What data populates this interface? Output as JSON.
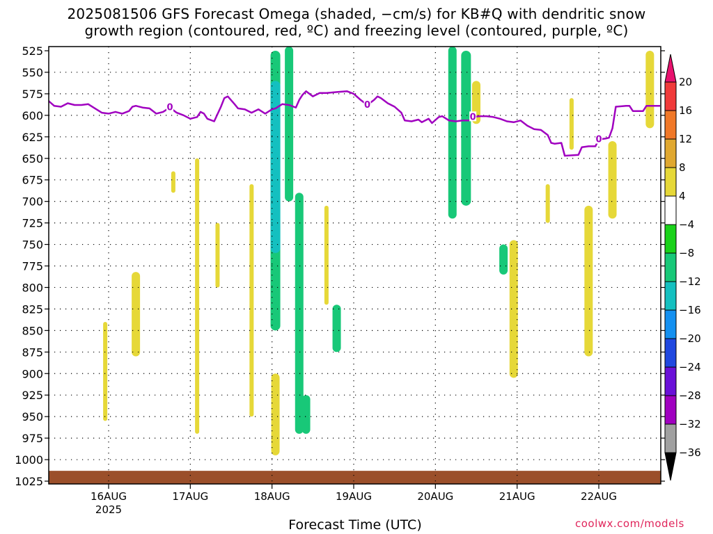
{
  "title_line1": "2025081506 GFS Forecast Omega (shaded, −cm/s) for KB#Q with dendritic snow",
  "title_line2": "growth region (contoured, red, ºC) and freezing level (contoured, purple, ºC)",
  "xlabel": "Forecast Time (UTC)",
  "credit": "coolwx.com/models",
  "colors": {
    "freezing_level": "#a000c0",
    "ground": "#9b4f2a"
  },
  "chart_data": {
    "type": "heatmap",
    "x_ticks": [
      {
        "label": "16AUG",
        "sub": "2025",
        "hour": 24
      },
      {
        "label": "17AUG",
        "sub": "",
        "hour": 48
      },
      {
        "label": "18AUG",
        "sub": "",
        "hour": 72
      },
      {
        "label": "19AUG",
        "sub": "",
        "hour": 96
      },
      {
        "label": "20AUG",
        "sub": "",
        "hour": 120
      },
      {
        "label": "21AUG",
        "sub": "",
        "hour": 144
      },
      {
        "label": "22AUG",
        "sub": "",
        "hour": 168
      }
    ],
    "xlim_hours": [
      6,
      186
    ],
    "y_ticks": [
      525,
      550,
      575,
      600,
      625,
      650,
      675,
      700,
      725,
      750,
      775,
      800,
      825,
      850,
      875,
      900,
      925,
      950,
      975,
      1000,
      1025
    ],
    "ylim": [
      525,
      1025
    ],
    "grid": true,
    "colorbar": {
      "labels": [
        "20",
        "16",
        "12",
        "8",
        "4",
        "−4",
        "−8",
        "−12",
        "−16",
        "−20",
        "−24",
        "−28",
        "−32",
        "−36"
      ],
      "colors": [
        "#f03a3a",
        "#f07828",
        "#e0a830",
        "#e6d838",
        "#ffffff",
        "#1ad21a",
        "#18c878",
        "#14c0c0",
        "#1490f0",
        "#2048e0",
        "#6a10d8",
        "#a000c0",
        "#a0a0a0"
      ],
      "top_color": "#e8126e",
      "bottom_color": "#000000"
    },
    "freezing_level": {
      "label": "0",
      "points": [
        [
          6,
          582
        ],
        [
          8,
          589
        ],
        [
          10,
          590
        ],
        [
          12,
          586
        ],
        [
          14,
          588
        ],
        [
          16,
          588
        ],
        [
          18,
          587
        ],
        [
          20,
          592
        ],
        [
          22,
          597
        ],
        [
          24,
          598
        ],
        [
          26,
          596
        ],
        [
          28,
          598
        ],
        [
          30,
          595
        ],
        [
          31,
          590
        ],
        [
          32,
          589
        ],
        [
          34,
          591
        ],
        [
          36,
          592
        ],
        [
          38,
          598
        ],
        [
          40,
          596
        ],
        [
          42,
          591
        ],
        [
          44,
          597
        ],
        [
          46,
          600
        ],
        [
          48,
          604
        ],
        [
          50,
          602
        ],
        [
          51,
          596
        ],
        [
          52,
          598
        ],
        [
          53,
          604
        ],
        [
          55,
          607
        ],
        [
          57,
          590
        ],
        [
          58,
          580
        ],
        [
          59,
          578
        ],
        [
          61,
          587
        ],
        [
          62,
          592
        ],
        [
          64,
          593
        ],
        [
          66,
          597
        ],
        [
          68,
          593
        ],
        [
          70,
          598
        ],
        [
          72,
          593
        ],
        [
          73,
          592
        ],
        [
          75,
          587
        ],
        [
          77,
          588
        ],
        [
          79,
          591
        ],
        [
          80,
          582
        ],
        [
          81,
          576
        ],
        [
          82,
          572
        ],
        [
          84,
          578
        ],
        [
          86,
          574
        ],
        [
          88,
          574
        ],
        [
          91,
          573
        ],
        [
          94,
          572
        ],
        [
          96,
          575
        ],
        [
          98,
          582
        ],
        [
          100,
          588
        ],
        [
          102,
          582
        ],
        [
          103,
          578
        ],
        [
          104,
          580
        ],
        [
          106,
          586
        ],
        [
          108,
          590
        ],
        [
          110,
          597
        ],
        [
          111,
          606
        ],
        [
          113,
          607
        ],
        [
          115,
          605
        ],
        [
          116,
          608
        ],
        [
          118,
          604
        ],
        [
          119,
          609
        ],
        [
          121,
          602
        ],
        [
          122,
          601
        ],
        [
          124,
          606
        ],
        [
          126,
          607
        ],
        [
          128,
          606
        ],
        [
          130,
          606
        ],
        [
          131,
          602
        ],
        [
          133,
          601
        ],
        [
          135,
          601
        ],
        [
          137,
          602
        ],
        [
          139,
          604
        ],
        [
          141,
          607
        ],
        [
          143,
          608
        ],
        [
          145,
          606
        ],
        [
          147,
          612
        ],
        [
          149,
          616
        ],
        [
          151,
          617
        ],
        [
          153,
          623
        ],
        [
          154,
          632
        ],
        [
          155,
          633
        ],
        [
          157,
          632
        ],
        [
          158,
          647
        ],
        [
          162,
          646
        ],
        [
          163,
          637
        ],
        [
          165,
          636
        ],
        [
          167,
          636
        ],
        [
          168,
          628
        ],
        [
          170,
          627
        ],
        [
          171,
          626
        ],
        [
          172,
          615
        ],
        [
          173,
          590
        ],
        [
          176,
          589
        ],
        [
          177,
          589
        ],
        [
          178,
          595
        ],
        [
          181,
          595
        ],
        [
          182,
          589
        ],
        [
          184,
          589
        ],
        [
          186,
          589
        ]
      ],
      "label_hours": [
        42,
        100,
        131,
        168
      ]
    },
    "omega_features": [
      {
        "kind": "ascent_weak",
        "value": 4,
        "hour": 23,
        "p_top": 840,
        "p_bot": 955
      },
      {
        "kind": "ascent_weak",
        "value": 6,
        "hour": 32,
        "p_top": 782,
        "p_bot": 880
      },
      {
        "kind": "ascent_weak",
        "value": 4,
        "hour": 43,
        "p_top": 665,
        "p_bot": 690
      },
      {
        "kind": "ascent_weak",
        "value": 4,
        "hour": 50,
        "p_top": 650,
        "p_bot": 970
      },
      {
        "kind": "ascent_weak",
        "value": 4,
        "hour": 56,
        "p_top": 725,
        "p_bot": 800
      },
      {
        "kind": "ascent_weak",
        "value": 4,
        "hour": 66,
        "p_top": 680,
        "p_bot": 950
      },
      {
        "kind": "ascent_strong",
        "value": -10,
        "hour": 73,
        "p_top": 525,
        "p_bot": 850
      },
      {
        "kind": "ascent_strong",
        "value": -14,
        "hour": 73,
        "p_top": 560,
        "p_bot": 760
      },
      {
        "kind": "ascent_weak",
        "value": 6,
        "hour": 73,
        "p_top": 900,
        "p_bot": 995
      },
      {
        "kind": "ascent_strong",
        "value": -8,
        "hour": 77,
        "p_top": 520,
        "p_bot": 700
      },
      {
        "kind": "ascent_strong",
        "value": -8,
        "hour": 80,
        "p_top": 690,
        "p_bot": 970
      },
      {
        "kind": "ascent_strong",
        "value": -8,
        "hour": 82,
        "p_top": 925,
        "p_bot": 970
      },
      {
        "kind": "ascent_strong",
        "value": -8,
        "hour": 91,
        "p_top": 820,
        "p_bot": 875
      },
      {
        "kind": "ascent_weak",
        "value": 4,
        "hour": 88,
        "p_top": 705,
        "p_bot": 820
      },
      {
        "kind": "ascent_strong",
        "value": -8,
        "hour": 125,
        "p_top": 520,
        "p_bot": 720
      },
      {
        "kind": "ascent_strong",
        "value": -10,
        "hour": 129,
        "p_top": 525,
        "p_bot": 705
      },
      {
        "kind": "ascent_weak",
        "value": 6,
        "hour": 132,
        "p_top": 560,
        "p_bot": 610
      },
      {
        "kind": "ascent_strong",
        "value": -8,
        "hour": 140,
        "p_top": 750,
        "p_bot": 785
      },
      {
        "kind": "ascent_weak",
        "value": 6,
        "hour": 143,
        "p_top": 745,
        "p_bot": 905
      },
      {
        "kind": "ascent_weak",
        "value": 4,
        "hour": 153,
        "p_top": 680,
        "p_bot": 725
      },
      {
        "kind": "ascent_weak",
        "value": 4,
        "hour": 160,
        "p_top": 580,
        "p_bot": 640
      },
      {
        "kind": "ascent_weak",
        "value": 6,
        "hour": 165,
        "p_top": 705,
        "p_bot": 880
      },
      {
        "kind": "ascent_weak",
        "value": 6,
        "hour": 172,
        "p_top": 630,
        "p_bot": 720
      },
      {
        "kind": "ascent_weak",
        "value": 6,
        "hour": 183,
        "p_top": 525,
        "p_bot": 615
      }
    ]
  }
}
